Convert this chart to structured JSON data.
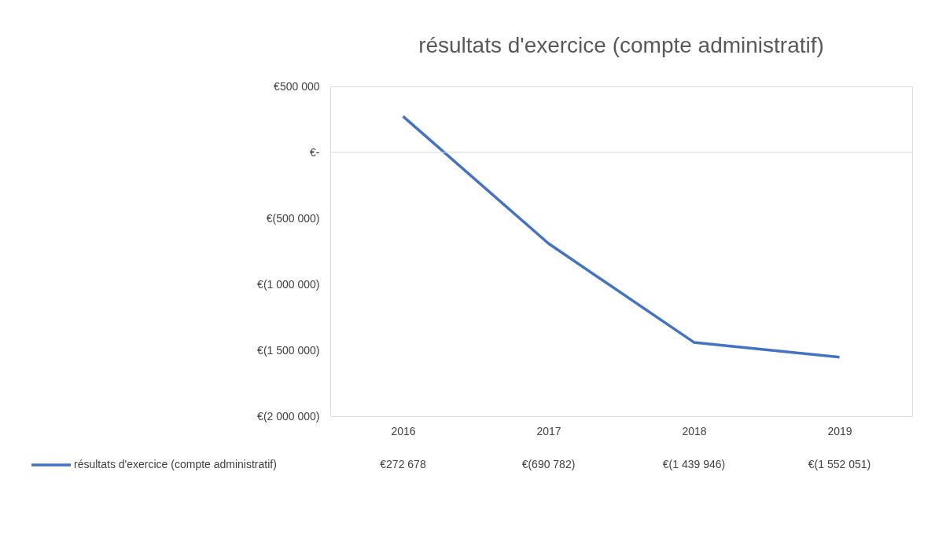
{
  "chart_data": {
    "type": "line",
    "title": "résultats d'exercice (compte administratif)",
    "categories": [
      "2016",
      "2017",
      "2018",
      "2019"
    ],
    "series": [
      {
        "name": "résultats d'exercice (compte administratif)",
        "color": "#4472c4",
        "values": [
          272678,
          -690782,
          -1439946,
          -1552051
        ],
        "value_labels": [
          "€272 678",
          "€(690 782)",
          "€(1 439 946)",
          "€(1 552 051)"
        ]
      }
    ],
    "ylim": [
      -2000000,
      500000
    ],
    "yticks": [
      {
        "value": 500000,
        "label": "€500 000"
      },
      {
        "value": 0,
        "label": "€-"
      },
      {
        "value": -500000,
        "label": "€(500 000)"
      },
      {
        "value": -1000000,
        "label": "€(1 000 000)"
      },
      {
        "value": -1500000,
        "label": "€(1 500 000)"
      },
      {
        "value": -2000000,
        "label": "€(2 000 000)"
      }
    ],
    "ref_lines": [
      {
        "axis": "y",
        "value": 0,
        "color": "#d9d9d9"
      }
    ],
    "grid": false,
    "legend": "bottom",
    "marker": "none",
    "line_style": "solid"
  }
}
